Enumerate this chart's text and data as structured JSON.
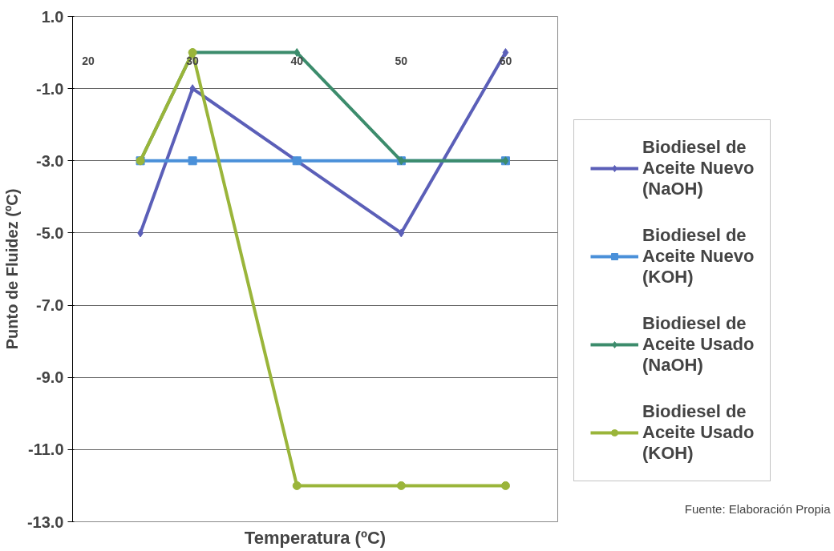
{
  "chart_data": {
    "type": "line",
    "xlabel": "Temperatura (ºC)",
    "ylabel": "Punto de Fluidez (ºC)",
    "x": [
      25,
      30,
      40,
      50,
      60
    ],
    "series": [
      {
        "name": "Biodiesel de Aceite Nuevo (NaOH)",
        "color": "#5b5fb8",
        "marker": "diamond",
        "values": [
          -5,
          -1,
          -3,
          -5,
          0
        ]
      },
      {
        "name": "Biodiesel de Aceite Nuevo (KOH)",
        "color": "#4a90d9",
        "marker": "square",
        "values": [
          -3,
          -3,
          -3,
          -3,
          -3
        ]
      },
      {
        "name": "Biodiesel de Aceite Usado (NaOH)",
        "color": "#3c8c6c",
        "marker": "diamond",
        "values": [
          -3,
          0,
          0,
          -3,
          -3
        ]
      },
      {
        "name": "Biodiesel de Aceite Usado (KOH)",
        "color": "#9ab53a",
        "marker": "circle",
        "values": [
          -3,
          0,
          -12,
          -12,
          -12
        ]
      }
    ],
    "xlim": [
      18.5,
      65
    ],
    "xticks": [
      20,
      30,
      40,
      50,
      60
    ],
    "ylim": [
      -13,
      1
    ],
    "yticks": [
      {
        "value": 1,
        "label": "1.0"
      },
      {
        "value": -1,
        "label": "-1.0"
      },
      {
        "value": -3,
        "label": "-3.0"
      },
      {
        "value": -5,
        "label": "-5.0"
      },
      {
        "value": -7,
        "label": "-7.0"
      },
      {
        "value": -9,
        "label": "-9.0"
      },
      {
        "value": -11,
        "label": "-11.0"
      },
      {
        "value": -13,
        "label": "-13.0"
      }
    ],
    "grid": "y",
    "legend": "right",
    "annotations": [
      "Fuente: Elaboración Propia"
    ]
  }
}
